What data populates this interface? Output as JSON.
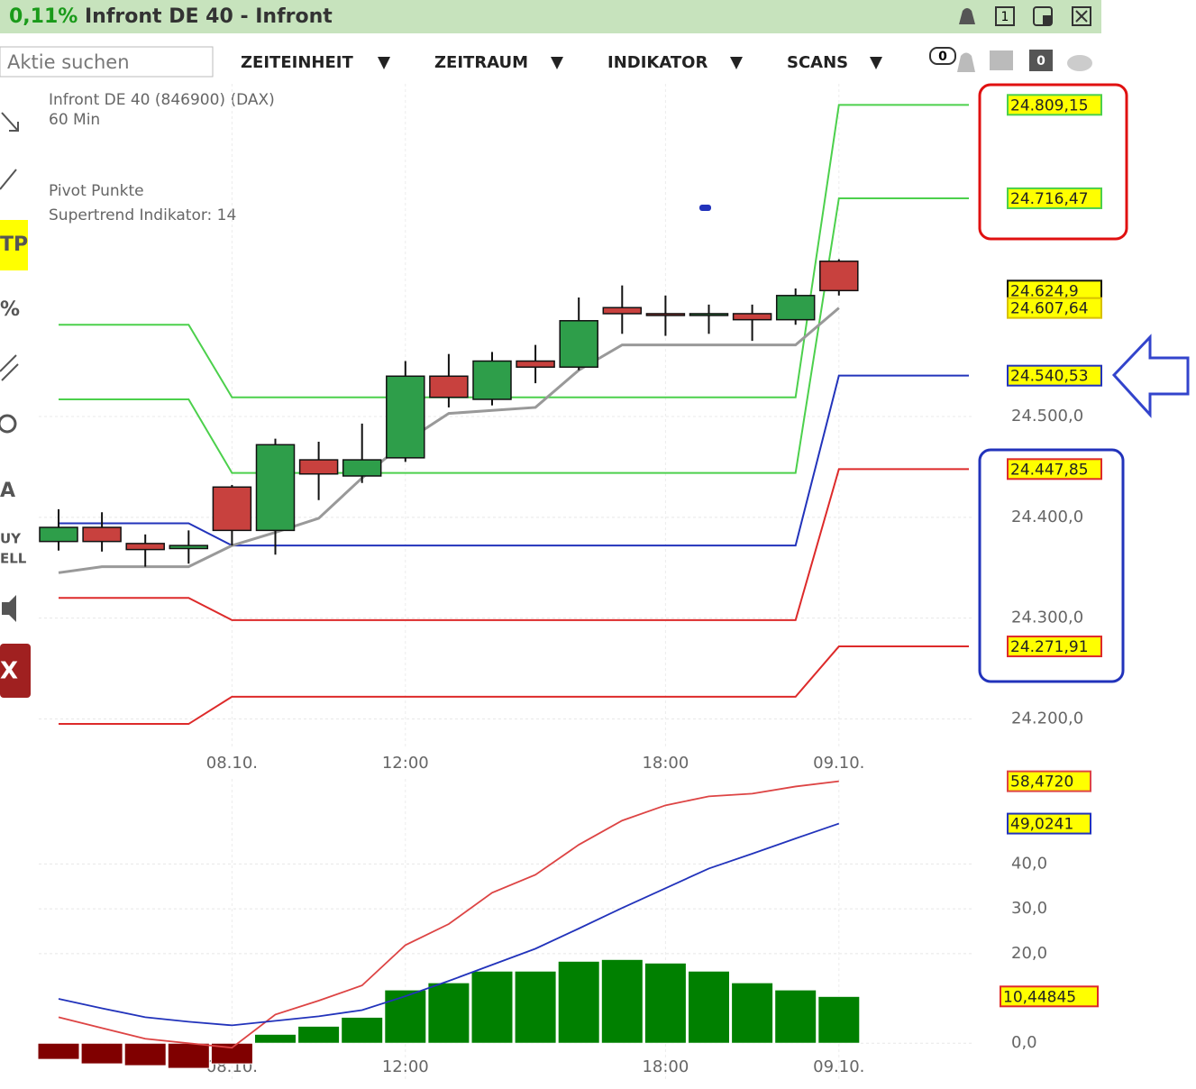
{
  "header": {
    "change": "0,11%",
    "title": "Infront DE 40 - Infront",
    "window_number": "1"
  },
  "toolbar": {
    "search": "Aktie suchen",
    "menus": [
      "ZEITEINHEIT",
      "ZEITRAUM",
      "INDIKATOR",
      "SCANS"
    ],
    "badges": [
      "0",
      "0"
    ]
  },
  "left_tools": [
    "TP",
    "%",
    "A",
    "UY",
    "ELL",
    "X"
  ],
  "chart_data": [
    {
      "type": "candlestick",
      "title": "Infront DE 40 (846900) (DAX)",
      "subtitle": "60 Min",
      "indicators": [
        "Pivot Punkte",
        "Supertrend Indikator: 14"
      ],
      "categories": [
        null,
        null,
        null,
        null,
        "08.10.",
        null,
        null,
        null,
        "12:00",
        null,
        null,
        null,
        null,
        null,
        "18:00",
        null,
        null,
        null,
        "09.10."
      ],
      "open": [
        24376,
        24390,
        24374,
        24369,
        24430,
        24387,
        24457,
        24441,
        24459,
        24540,
        24517,
        24555,
        24549,
        24608,
        24602,
        24602,
        24602,
        24596,
        24654
      ],
      "high": [
        24408,
        24405,
        24383,
        24387,
        24432,
        24478,
        24475,
        24493,
        24555,
        24562,
        24564,
        24571,
        24618,
        24630,
        24620,
        24611,
        24611,
        24627,
        24656
      ],
      "low": [
        24367,
        24366,
        24351,
        24354,
        24372,
        24363,
        24417,
        24434,
        24455,
        24509,
        24511,
        24533,
        24546,
        24582,
        24580,
        24582,
        24575,
        24591,
        24620
      ],
      "close": [
        24390,
        24376,
        24368,
        24372,
        24387,
        24472,
        24443,
        24457,
        24540,
        24519,
        24555,
        24549,
        24595,
        24602,
        24601,
        24602,
        24596,
        24620,
        24624.9
      ],
      "close_labels": [
        null,
        null,
        null,
        null,
        null,
        null,
        null,
        null,
        null,
        null,
        null,
        null,
        null,
        null,
        null,
        null,
        null,
        null,
        "24.624,9"
      ],
      "up_color": "#2e9e4a",
      "down_color": "#c8413e",
      "series": [
        {
          "color": "#4cd04c",
          "values": [
            24591,
            24591,
            24591,
            24591,
            24519,
            24519,
            24519,
            24519,
            24519,
            24519,
            24519,
            24519,
            24519,
            24519,
            24519,
            24519,
            24519,
            24519,
            24809.15
          ],
          "value_labels": [
            null,
            null,
            null,
            null,
            null,
            null,
            null,
            null,
            null,
            null,
            null,
            null,
            null,
            null,
            null,
            null,
            null,
            null,
            "24.809,15"
          ]
        },
        {
          "color": "#4cd04c",
          "values": [
            24517,
            24517,
            24517,
            24517,
            24444,
            24444,
            24444,
            24444,
            24444,
            24444,
            24444,
            24444,
            24444,
            24444,
            24444,
            24444,
            24444,
            24444,
            24716.47
          ],
          "value_labels": [
            null,
            null,
            null,
            null,
            null,
            null,
            null,
            null,
            null,
            null,
            null,
            null,
            null,
            null,
            null,
            null,
            null,
            null,
            "24.716,47"
          ]
        },
        {
          "color": "#2233bb",
          "values": [
            24394,
            24394,
            24394,
            24394,
            24372,
            24372,
            24372,
            24372,
            24372,
            24372,
            24372,
            24372,
            24372,
            24372,
            24372,
            24372,
            24372,
            24372,
            24540.53
          ],
          "value_labels": [
            null,
            null,
            null,
            null,
            null,
            null,
            null,
            null,
            null,
            null,
            null,
            null,
            null,
            null,
            null,
            null,
            null,
            null,
            "24.540,53"
          ]
        },
        {
          "color": "#dd2a2a",
          "values": [
            24320,
            24320,
            24320,
            24320,
            24298,
            24298,
            24298,
            24298,
            24298,
            24298,
            24298,
            24298,
            24298,
            24298,
            24298,
            24298,
            24298,
            24298,
            24447.85
          ],
          "value_labels": [
            null,
            null,
            null,
            null,
            null,
            null,
            null,
            null,
            null,
            null,
            null,
            null,
            null,
            null,
            null,
            null,
            null,
            null,
            "24.447,85"
          ]
        },
        {
          "color": "#dd2a2a",
          "values": [
            24195,
            24195,
            24195,
            24195,
            24222,
            24222,
            24222,
            24222,
            24222,
            24222,
            24222,
            24222,
            24222,
            24222,
            24222,
            24222,
            24222,
            24222,
            24271.91
          ],
          "value_labels": [
            null,
            null,
            null,
            null,
            null,
            null,
            null,
            null,
            null,
            null,
            null,
            null,
            null,
            null,
            null,
            null,
            null,
            null,
            "24.271,91"
          ]
        },
        {
          "color": "#999999",
          "values": [
            24345,
            24351,
            24351,
            24351,
            24372,
            24385,
            24399,
            24439,
            24475,
            24503,
            24506,
            24509,
            24546,
            24571,
            24571,
            24571,
            24571,
            24571,
            24607.64
          ],
          "value_labels": [
            null,
            null,
            null,
            null,
            null,
            null,
            null,
            null,
            null,
            null,
            null,
            null,
            null,
            null,
            null,
            null,
            null,
            null,
            "24.607,64"
          ]
        }
      ],
      "ylim": [
        24170,
        24830
      ],
      "yticks": [
        {
          "value": 24200,
          "label": "24.200,0"
        },
        {
          "value": 24300,
          "label": "24.300,0"
        },
        {
          "value": 24400,
          "label": "24.400,0"
        },
        {
          "value": 24500,
          "label": "24.500,0"
        }
      ],
      "grid": true
    },
    {
      "type": "macd",
      "categories": [
        null,
        null,
        null,
        null,
        "08.10.",
        null,
        null,
        null,
        "12:00",
        null,
        null,
        null,
        null,
        null,
        "18:00",
        null,
        null,
        null,
        "09.10."
      ],
      "bars": {
        "values": [
          -3.6,
          -4.6,
          -5.0,
          -5.6,
          -4.6,
          2.0,
          3.8,
          5.8,
          11.9,
          13.5,
          16.1,
          16.1,
          18.3,
          18.7,
          17.9,
          16.1,
          13.5,
          11.9,
          10.44845
        ],
        "value_labels": [
          null,
          null,
          null,
          null,
          null,
          null,
          null,
          null,
          null,
          null,
          null,
          null,
          null,
          null,
          null,
          null,
          null,
          null,
          "10,44845"
        ],
        "positive_color": "#008000",
        "negative_color": "#800000",
        "label_color": "#dd2a2a"
      },
      "series": [
        {
          "color": "#dd4444",
          "values": [
            5.8,
            3.4,
            1.0,
            0,
            -1.0,
            6.4,
            9.5,
            12.9,
            21.9,
            26.6,
            33.6,
            37.6,
            44.3,
            49.7,
            53.1,
            55.1,
            55.7,
            57.3,
            58.472
          ],
          "value_labels": [
            null,
            null,
            null,
            null,
            null,
            null,
            null,
            null,
            null,
            null,
            null,
            null,
            null,
            null,
            null,
            null,
            null,
            null,
            "58,4720"
          ]
        },
        {
          "color": "#2233bb",
          "values": [
            9.9,
            7.8,
            5.8,
            4.8,
            4.0,
            5.0,
            6.0,
            7.4,
            10.5,
            13.9,
            17.5,
            21.1,
            25.6,
            30.2,
            34.6,
            39.0,
            42.3,
            45.7,
            49.0241
          ],
          "value_labels": [
            null,
            null,
            null,
            null,
            null,
            null,
            null,
            null,
            null,
            null,
            null,
            null,
            null,
            null,
            null,
            null,
            null,
            null,
            "49,0241"
          ]
        }
      ],
      "ylim": [
        -8,
        59
      ],
      "yticks": [
        {
          "value": 0,
          "label": "0,0"
        },
        {
          "value": 20,
          "label": "20,0"
        },
        {
          "value": 30,
          "label": "30,0"
        },
        {
          "value": 40,
          "label": "40,0"
        }
      ],
      "grid": true
    }
  ]
}
